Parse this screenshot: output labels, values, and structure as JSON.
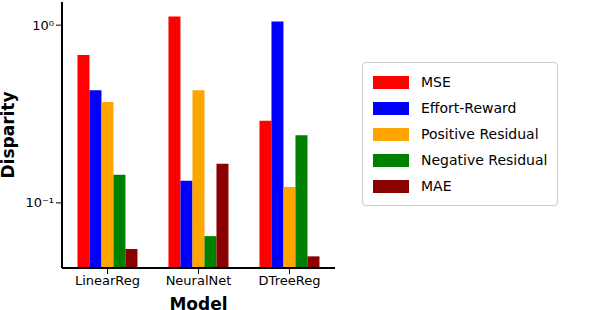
{
  "chart_data": {
    "type": "bar",
    "x_label": "Model",
    "y_label": "Disparity",
    "categories": [
      "LinearReg",
      "NeuralNet",
      "DTreeReg"
    ],
    "series": [
      {
        "name": "MSE",
        "color": "#ff0000",
        "values": [
          0.68,
          1.12,
          0.29
        ]
      },
      {
        "name": "Effort-Reward",
        "color": "#0000ff",
        "values": [
          0.43,
          0.133,
          1.05
        ]
      },
      {
        "name": "Positive Residual",
        "color": "#ffa500",
        "values": [
          0.37,
          0.43,
          0.123
        ]
      },
      {
        "name": "Negative Residual",
        "color": "#008000",
        "values": [
          0.144,
          0.065,
          0.24
        ]
      },
      {
        "name": "MAE",
        "color": "#8b0000",
        "values": [
          0.055,
          0.166,
          0.05
        ]
      }
    ],
    "log": "y",
    "ylim": [
      0.043,
      1.35
    ],
    "yticks": [
      {
        "value": 0.1,
        "label": "10⁻¹"
      },
      {
        "value": 1,
        "label": "10⁰"
      }
    ],
    "legend": "right"
  }
}
